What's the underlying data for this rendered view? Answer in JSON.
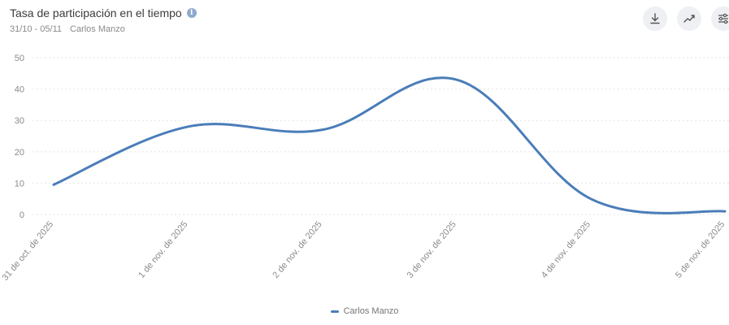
{
  "header": {
    "title": "Tasa de participación en el tiempo",
    "date_range": "31/10 - 05/11",
    "profile": "Carlos Manzo"
  },
  "toolbar": {
    "icons": [
      "download-icon",
      "trend-icon",
      "settings-sliders-icon"
    ]
  },
  "colors": {
    "series": "#4a7db8",
    "grid": "#e6e6e6",
    "axis_text": "#8a8a8a"
  },
  "chart_data": {
    "type": "line",
    "title": "Tasa de participación en el tiempo",
    "categories": [
      "31 de oct. de 2025",
      "1 de nov. de 2025",
      "2 de nov. de 2025",
      "3 de nov. de 2025",
      "4 de nov. de 2025",
      "5 de nov. de 2025"
    ],
    "x_tick_labels": [
      "31 de oct. de 2025",
      "1 de nov. de 2025",
      "2 de nov. de 2025",
      "3 de nov. de 2025",
      "4 de nov. de 2025",
      "5 de nov. de 2025"
    ],
    "series": [
      {
        "name": "Carlos Manzo",
        "values": [
          9.5,
          28,
          27,
          43,
          5,
          1
        ]
      }
    ],
    "ylim": [
      0,
      50
    ],
    "yticks": [
      0,
      10,
      20,
      30,
      40,
      50
    ],
    "grid": true,
    "legend": "bottom-center",
    "curve": "smooth"
  }
}
